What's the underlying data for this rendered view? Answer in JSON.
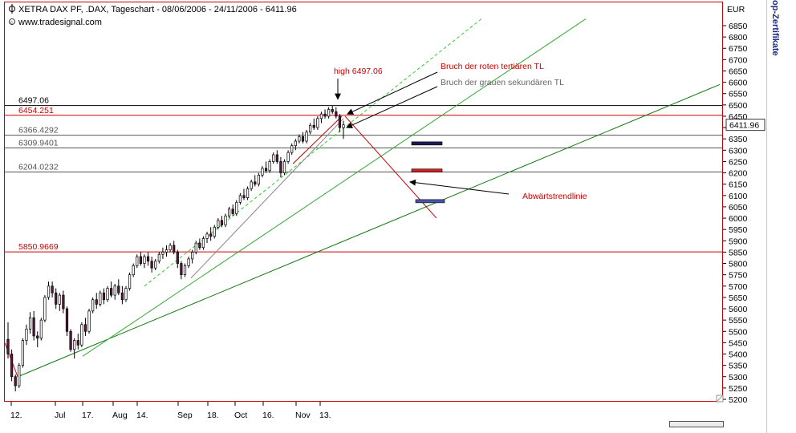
{
  "header": {
    "title": "XETRA DAX PF, .DAX, Tageschart - 08/06/2006 - 24/11/2006 - 6411.96",
    "source": "www.tradesignal.com"
  },
  "side_panel": {
    "label": "op-Zertifikate"
  },
  "colors": {
    "up_candle": "#ffffff",
    "down_candle": "#5a1a3a",
    "resistance_black": "#000000",
    "resistance_red": "#cc0000",
    "support_gray": "#555555",
    "trend_green": "#33aa33",
    "trend_dark_green": "#117711",
    "trend_dashed": "#33cc33",
    "annotation_red": "#cc0000"
  },
  "chart_data": {
    "type": "candlestick",
    "title": "XETRA DAX PF, .DAX, Tageschart - 08/06/2006 - 24/11/2006 - 6411.96",
    "currency": "EUR",
    "last_price": "6411.96",
    "ylim": [
      5200,
      6900
    ],
    "y_ticks": [
      "6850",
      "6800",
      "6750",
      "6700",
      "6650",
      "6600",
      "6550",
      "6500",
      "6450",
      "6400",
      "6350",
      "6300",
      "6250",
      "6200",
      "6150",
      "6100",
      "6050",
      "6000",
      "5950",
      "5900",
      "5850",
      "5800",
      "5750",
      "5700",
      "5650",
      "5600",
      "5550",
      "5500",
      "5450",
      "5400",
      "5350",
      "5300",
      "5250",
      "5200"
    ],
    "x_labels": [
      "12.",
      "Jul",
      "17.",
      "Aug",
      "14.",
      "Sep",
      "18.",
      "Oct",
      "16.",
      "Nov",
      "13."
    ],
    "horizontal_levels": [
      {
        "value": 6497.06,
        "label": "6497.06",
        "color": "black"
      },
      {
        "value": 6454.251,
        "label": "6454.251",
        "color": "red"
      },
      {
        "value": 6366.4292,
        "label": "6366.4292",
        "color": "gray"
      },
      {
        "value": 6309.9401,
        "label": "6309.9401",
        "color": "gray"
      },
      {
        "value": 6204.0232,
        "label": "6204.0232",
        "color": "gray"
      },
      {
        "value": 5850.9669,
        "label": "5850.9669",
        "color": "red"
      }
    ],
    "annotations": {
      "high": "high 6497.06",
      "break_red": "Bruch der roten tertiären TL",
      "break_gray": "Bruch der grauen sekundären TL",
      "downtrend": "Abwärtstrendlinie"
    },
    "target_boxes": [
      {
        "value": 6330,
        "color": "#1a1a55"
      },
      {
        "value": 6210,
        "color": "#cc2222"
      },
      {
        "value": 6075,
        "color": "#4455aa"
      }
    ],
    "candles": [
      [
        5465,
        5540,
        5380,
        5400
      ],
      [
        5400,
        5420,
        5280,
        5300
      ],
      [
        5300,
        5310,
        5235,
        5260
      ],
      [
        5260,
        5360,
        5250,
        5350
      ],
      [
        5350,
        5470,
        5340,
        5460
      ],
      [
        5460,
        5530,
        5440,
        5510
      ],
      [
        5510,
        5585,
        5490,
        5560
      ],
      [
        5560,
        5590,
        5460,
        5480
      ],
      [
        5480,
        5500,
        5430,
        5470
      ],
      [
        5470,
        5560,
        5460,
        5550
      ],
      [
        5550,
        5660,
        5540,
        5650
      ],
      [
        5650,
        5720,
        5640,
        5700
      ],
      [
        5700,
        5720,
        5650,
        5670
      ],
      [
        5670,
        5690,
        5600,
        5620
      ],
      [
        5620,
        5670,
        5590,
        5660
      ],
      [
        5660,
        5680,
        5580,
        5600
      ],
      [
        5600,
        5610,
        5480,
        5500
      ],
      [
        5500,
        5510,
        5410,
        5420
      ],
      [
        5420,
        5470,
        5380,
        5460
      ],
      [
        5460,
        5490,
        5420,
        5440
      ],
      [
        5440,
        5540,
        5430,
        5530
      ],
      [
        5530,
        5560,
        5480,
        5500
      ],
      [
        5500,
        5600,
        5490,
        5590
      ],
      [
        5590,
        5650,
        5580,
        5640
      ],
      [
        5640,
        5670,
        5600,
        5620
      ],
      [
        5620,
        5680,
        5610,
        5670
      ],
      [
        5670,
        5690,
        5620,
        5640
      ],
      [
        5640,
        5700,
        5630,
        5690
      ],
      [
        5690,
        5720,
        5650,
        5660
      ],
      [
        5660,
        5710,
        5640,
        5700
      ],
      [
        5700,
        5730,
        5660,
        5670
      ],
      [
        5670,
        5700,
        5620,
        5640
      ],
      [
        5640,
        5700,
        5630,
        5690
      ],
      [
        5690,
        5760,
        5680,
        5750
      ],
      [
        5750,
        5800,
        5740,
        5790
      ],
      [
        5790,
        5840,
        5780,
        5830
      ],
      [
        5830,
        5850,
        5790,
        5800
      ],
      [
        5800,
        5840,
        5780,
        5830
      ],
      [
        5830,
        5850,
        5790,
        5810
      ],
      [
        5810,
        5830,
        5760,
        5780
      ],
      [
        5780,
        5820,
        5770,
        5810
      ],
      [
        5810,
        5850,
        5800,
        5840
      ],
      [
        5840,
        5870,
        5820,
        5850
      ],
      [
        5850,
        5880,
        5830,
        5860
      ],
      [
        5860,
        5890,
        5850,
        5880
      ],
      [
        5880,
        5900,
        5840,
        5850
      ],
      [
        5850,
        5860,
        5780,
        5800
      ],
      [
        5800,
        5810,
        5730,
        5750
      ],
      [
        5750,
        5800,
        5740,
        5790
      ],
      [
        5790,
        5830,
        5780,
        5820
      ],
      [
        5820,
        5860,
        5800,
        5850
      ],
      [
        5850,
        5900,
        5840,
        5890
      ],
      [
        5890,
        5910,
        5860,
        5870
      ],
      [
        5870,
        5920,
        5860,
        5910
      ],
      [
        5910,
        5940,
        5890,
        5930
      ],
      [
        5930,
        5960,
        5900,
        5920
      ],
      [
        5920,
        5970,
        5910,
        5960
      ],
      [
        5960,
        6000,
        5950,
        5990
      ],
      [
        5990,
        6010,
        5960,
        5970
      ],
      [
        5970,
        6020,
        5960,
        6010
      ],
      [
        6010,
        6050,
        6000,
        6040
      ],
      [
        6040,
        6060,
        6010,
        6020
      ],
      [
        6020,
        6080,
        6010,
        6070
      ],
      [
        6070,
        6110,
        6060,
        6100
      ],
      [
        6100,
        6130,
        6080,
        6090
      ],
      [
        6090,
        6140,
        6080,
        6130
      ],
      [
        6130,
        6170,
        6120,
        6160
      ],
      [
        6160,
        6190,
        6140,
        6150
      ],
      [
        6150,
        6200,
        6140,
        6190
      ],
      [
        6190,
        6230,
        6180,
        6220
      ],
      [
        6220,
        6250,
        6200,
        6210
      ],
      [
        6210,
        6260,
        6200,
        6250
      ],
      [
        6250,
        6290,
        6240,
        6280
      ],
      [
        6280,
        6300,
        6240,
        6250
      ],
      [
        6250,
        6270,
        6180,
        6200
      ],
      [
        6200,
        6260,
        6190,
        6250
      ],
      [
        6250,
        6300,
        6240,
        6290
      ],
      [
        6290,
        6330,
        6280,
        6320
      ],
      [
        6320,
        6350,
        6300,
        6340
      ],
      [
        6340,
        6370,
        6330,
        6360
      ],
      [
        6360,
        6380,
        6330,
        6340
      ],
      [
        6340,
        6390,
        6330,
        6380
      ],
      [
        6380,
        6420,
        6370,
        6410
      ],
      [
        6410,
        6440,
        6390,
        6400
      ],
      [
        6400,
        6450,
        6390,
        6440
      ],
      [
        6440,
        6470,
        6420,
        6460
      ],
      [
        6460,
        6480,
        6440,
        6450
      ],
      [
        6450,
        6490,
        6440,
        6480
      ],
      [
        6480,
        6497.06,
        6460,
        6470
      ],
      [
        6470,
        6490,
        6440,
        6450
      ],
      [
        6450,
        6460,
        6380,
        6400
      ],
      [
        6400,
        6430,
        6350,
        6411.96
      ]
    ]
  }
}
